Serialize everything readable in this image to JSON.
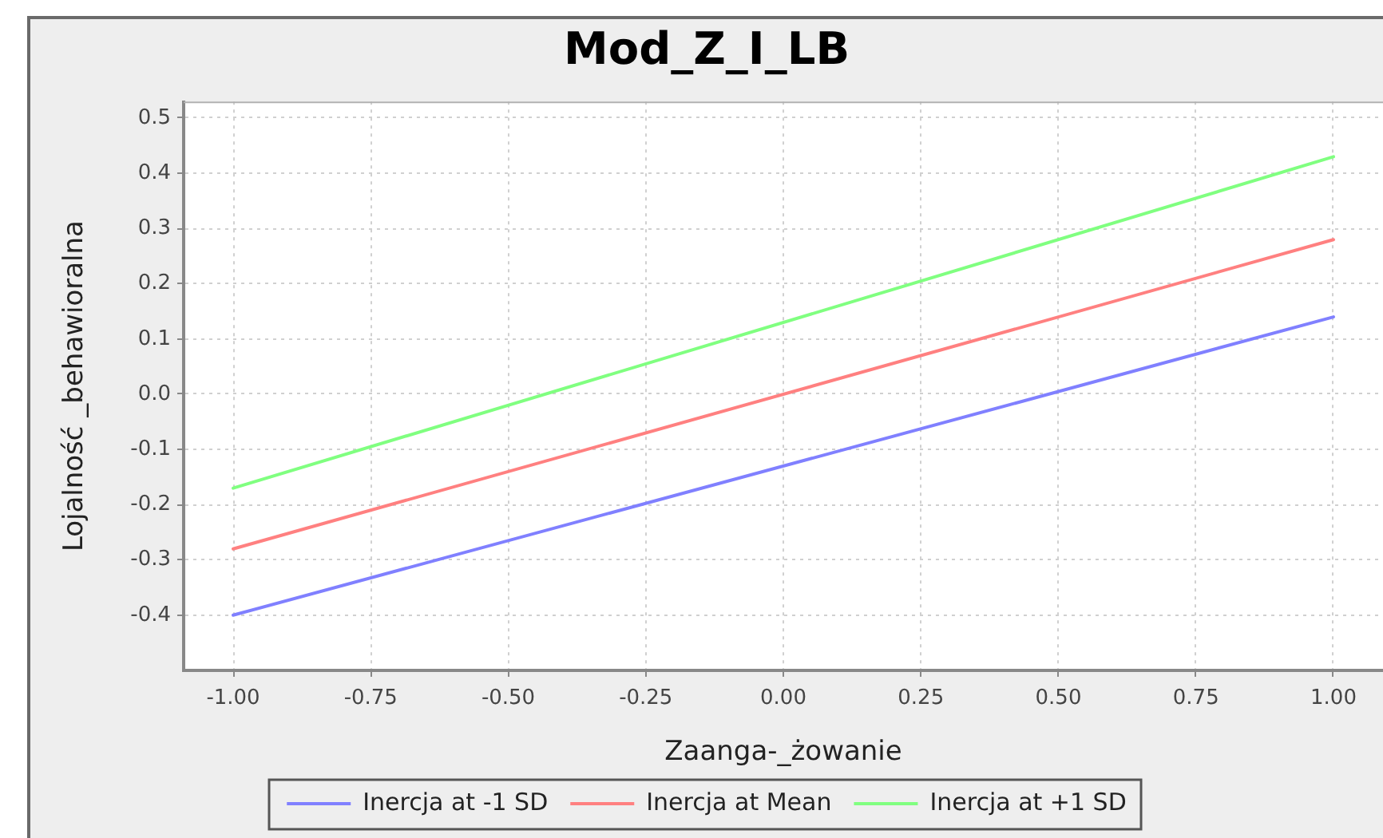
{
  "chart_data": {
    "type": "line",
    "title": "Mod_Z_I_LB",
    "xlabel": "Zaanga-_żowanie",
    "ylabel": "Lojalność _behawioralna",
    "x": [
      -1,
      1
    ],
    "series": [
      {
        "name": "Inercja at -1 SD",
        "color": "#8080ff",
        "values": [
          -0.4,
          0.14
        ]
      },
      {
        "name": "Inercja at Mean",
        "color": "#ff8080",
        "values": [
          -0.28,
          0.28
        ]
      },
      {
        "name": "Inercja at +1 SD",
        "color": "#80ff80",
        "values": [
          -0.17,
          0.43
        ]
      }
    ],
    "xlim": [
      -1.09,
      1.09
    ],
    "ylim": [
      -0.5,
      0.53
    ],
    "xticks": [
      {
        "value": -1,
        "label": "-1.00"
      },
      {
        "value": -0.75,
        "label": "-0.75"
      },
      {
        "value": -0.5,
        "label": "-0.50"
      },
      {
        "value": -0.25,
        "label": "-0.25"
      },
      {
        "value": 0,
        "label": "0.00"
      },
      {
        "value": 0.25,
        "label": "0.25"
      },
      {
        "value": 0.5,
        "label": "0.50"
      },
      {
        "value": 0.75,
        "label": "0.75"
      },
      {
        "value": 1,
        "label": "1.00"
      }
    ],
    "yticks": [
      -0.4,
      -0.3,
      -0.2,
      -0.1,
      {
        "value": 0,
        "label": "0.0"
      },
      0.1,
      0.2,
      0.3,
      0.4,
      0.5
    ],
    "grid": true,
    "legend": "bottom",
    "marker": "none",
    "line_style": "solid"
  }
}
